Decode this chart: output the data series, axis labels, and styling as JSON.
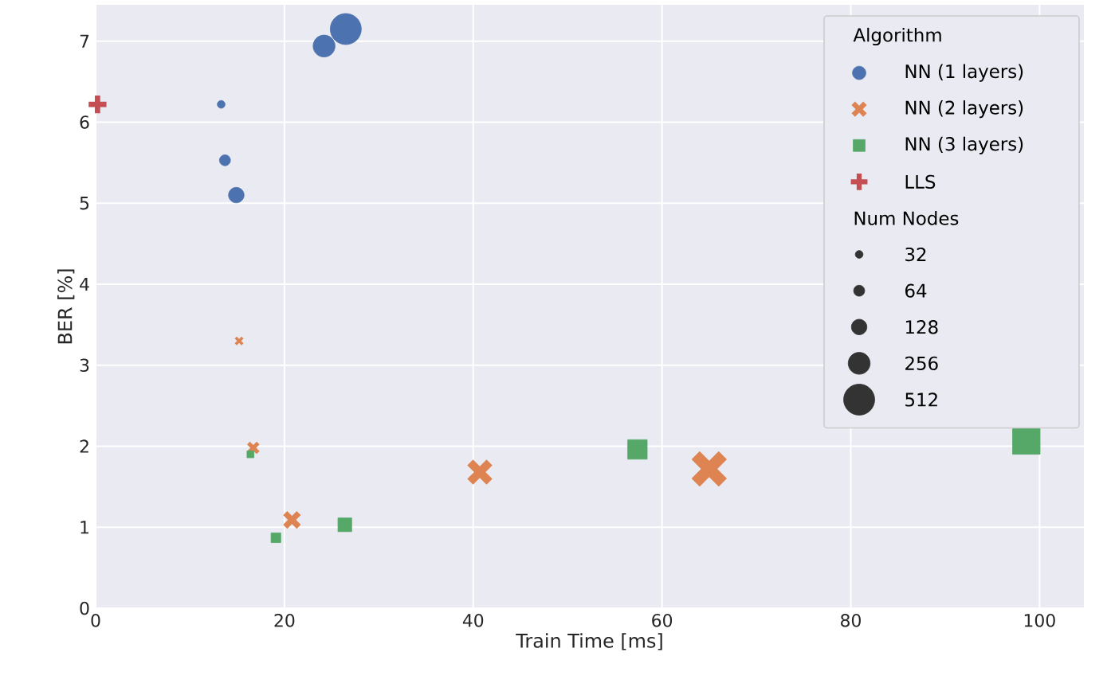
{
  "chart_data": {
    "type": "bubble",
    "xlabel": "Train Time [ms]",
    "ylabel": "BER [%]",
    "xlim": [
      0,
      104.7
    ],
    "ylim": [
      0,
      7.45
    ],
    "xticks": [
      0,
      20,
      40,
      60,
      80,
      100
    ],
    "yticks": [
      0,
      1,
      2,
      3,
      4,
      5,
      6,
      7
    ],
    "grid": true,
    "legend": "top right",
    "legend_title": "Algorithm",
    "annotations": [
      "Num Nodes"
    ],
    "size_legend": [
      32,
      64,
      128,
      256,
      512
    ],
    "series": [
      {
        "name": "NN (1 layers)",
        "color": "#4c72b0",
        "marker": "circle",
        "x": [
          13.3,
          13.7,
          14.9,
          24.2,
          26.5
        ],
        "values": [
          6.22,
          5.53,
          5.1,
          6.94,
          7.15
        ],
        "sizes": [
          32,
          64,
          128,
          256,
          512
        ]
      },
      {
        "name": "NN (2 layers)",
        "color": "#dd8452",
        "marker": "cross",
        "x": [
          15.2,
          16.7,
          20.8,
          40.7,
          65.0
        ],
        "values": [
          3.3,
          1.98,
          1.09,
          1.68,
          1.72
        ],
        "sizes": [
          32,
          64,
          128,
          256,
          512
        ]
      },
      {
        "name": "NN (3 layers)",
        "color": "#55a868",
        "marker": "square",
        "x": [
          16.4,
          19.1,
          26.4,
          57.4,
          98.6
        ],
        "values": [
          1.9,
          0.87,
          1.03,
          1.96,
          2.07
        ],
        "sizes": [
          32,
          64,
          128,
          256,
          512
        ]
      },
      {
        "name": "LLS",
        "color": "#c44e52",
        "marker": "plus",
        "x": [
          0.2
        ],
        "values": [
          6.22
        ],
        "sizes": [
          null
        ]
      }
    ]
  }
}
